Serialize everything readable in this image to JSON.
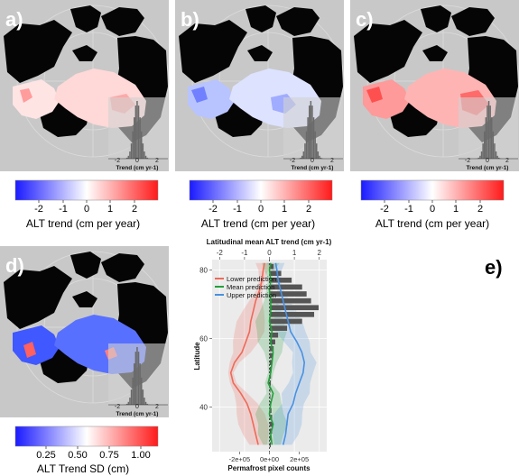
{
  "panels": {
    "a": {
      "label": "a)",
      "inset_xlabel": "Trend (cm yr-1)",
      "inset_ticks": [
        "-2",
        "0",
        "2"
      ],
      "cbar_ticks": [
        "-2",
        "-1",
        "0",
        "1",
        "2"
      ],
      "cbar_title": "ALT trend (cm per year)"
    },
    "b": {
      "label": "b)",
      "inset_xlabel": "Trend (cm yr-1)",
      "inset_ticks": [
        "-2",
        "0",
        "2"
      ],
      "cbar_ticks": [
        "-2",
        "-1",
        "0",
        "1",
        "2"
      ],
      "cbar_title": "ALT trend (cm per year)"
    },
    "c": {
      "label": "c)",
      "inset_xlabel": "Trend (cm yr-1)",
      "inset_ticks": [
        "-2",
        "0",
        "2"
      ],
      "cbar_ticks": [
        "-2",
        "-1",
        "0",
        "1",
        "2"
      ],
      "cbar_title": "ALT trend (cm per year)"
    },
    "d": {
      "label": "d)",
      "inset_xlabel": "Trend (cm yr-1)",
      "inset_ticks": [
        "-2",
        "0",
        "2"
      ],
      "cbar_ticks": [
        "0.25",
        "0.50",
        "0.75",
        "1.00"
      ],
      "cbar_title": "ALT Trend SD (cm)"
    },
    "e": {
      "label": "e)"
    }
  },
  "colors": {
    "map_bg": "#c8c8c8",
    "land": "#050505",
    "blue": "#1f1fff",
    "red": "#ff1f1f",
    "lower": "#ee6a5a",
    "mean": "#22a03a",
    "upper": "#4a90e0",
    "hist": "#555555"
  },
  "chart_data": {
    "type": "line",
    "top_axis_label": "Latitudinal mean ALT trend (cm yr-1)",
    "top_ticks": [
      -2,
      -1,
      0,
      1,
      2
    ],
    "top_xlim": [
      -2.3,
      2.3
    ],
    "bottom_axis_label": "Permafrost pixel counts",
    "bottom_ticks": [
      "-2e+05",
      "0e+00",
      "2e+05"
    ],
    "ylabel": "Latitude",
    "y_ticks": [
      40,
      60,
      80
    ],
    "ylim": [
      27,
      83
    ],
    "legend": [
      "Lower prediction",
      "Mean prediction",
      "Upper prediction"
    ],
    "series": [
      {
        "name": "Lower prediction",
        "lat": [
          29,
          32,
          35,
          38,
          41,
          44,
          47,
          50,
          53,
          56,
          59,
          62,
          65,
          68,
          71,
          74,
          77,
          80,
          82
        ],
        "trend": [
          -0.45,
          -0.55,
          -0.65,
          -0.75,
          -0.9,
          -1.15,
          -1.45,
          -1.55,
          -1.4,
          -1.1,
          -0.95,
          -0.8,
          -0.75,
          -0.65,
          -0.55,
          -0.4,
          -0.3,
          -0.25,
          -0.2
        ]
      },
      {
        "name": "Mean prediction",
        "lat": [
          29,
          32,
          35,
          38,
          41,
          44,
          47,
          50,
          53,
          56,
          59,
          62,
          65,
          68,
          71,
          74,
          77,
          80,
          82
        ],
        "trend": [
          0.1,
          0.05,
          0.15,
          0.0,
          0.05,
          0.15,
          -0.05,
          0.05,
          0.1,
          0.15,
          0.05,
          0.1,
          0.0,
          0.05,
          0.05,
          0.0,
          0.05,
          0.0,
          0.05
        ]
      },
      {
        "name": "Upper prediction",
        "lat": [
          29,
          32,
          35,
          38,
          41,
          44,
          47,
          50,
          53,
          56,
          59,
          62,
          65,
          68,
          71,
          74,
          77,
          80,
          82
        ],
        "trend": [
          0.55,
          0.65,
          0.7,
          0.75,
          0.95,
          1.05,
          1.2,
          1.35,
          1.4,
          1.3,
          1.1,
          0.85,
          0.75,
          0.65,
          0.55,
          0.45,
          0.35,
          0.3,
          0.25
        ]
      }
    ],
    "histogram": {
      "lat": [
        29,
        31,
        33,
        35,
        37,
        39,
        41,
        43,
        45,
        47,
        49,
        51,
        53,
        55,
        57,
        59,
        61,
        63,
        65,
        67,
        69,
        71,
        73,
        75,
        77,
        79,
        81
      ],
      "counts": [
        10000,
        15000,
        20000,
        25000,
        20000,
        15000,
        10000,
        8000,
        8000,
        10000,
        12000,
        15000,
        20000,
        25000,
        30000,
        40000,
        60000,
        120000,
        220000,
        300000,
        330000,
        280000,
        250000,
        220000,
        150000,
        80000,
        30000
      ]
    }
  }
}
